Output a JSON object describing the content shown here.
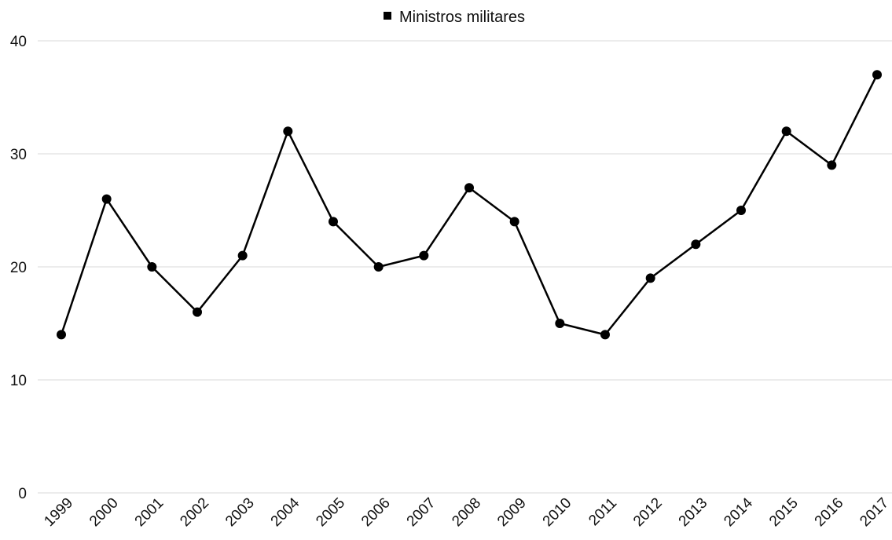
{
  "chart_data": {
    "type": "line",
    "title": "",
    "xlabel": "",
    "ylabel": "",
    "x": [
      "1999",
      "2000",
      "2001",
      "2002",
      "2003",
      "2004",
      "2005",
      "2006",
      "2007",
      "2008",
      "2009",
      "2010",
      "2011",
      "2012",
      "2013",
      "2014",
      "2015",
      "2016",
      "2017"
    ],
    "series": [
      {
        "name": "Ministros militares",
        "values": [
          14,
          26,
          20,
          16,
          21,
          32,
          24,
          20,
          21,
          27,
          24,
          15,
          14,
          19,
          22,
          25,
          32,
          29,
          37
        ],
        "color": "#000000"
      }
    ],
    "ylim": [
      0,
      40
    ],
    "yticks": [
      0,
      10,
      20,
      30,
      40
    ],
    "grid": "horizontal",
    "legend_position": "top-center"
  }
}
